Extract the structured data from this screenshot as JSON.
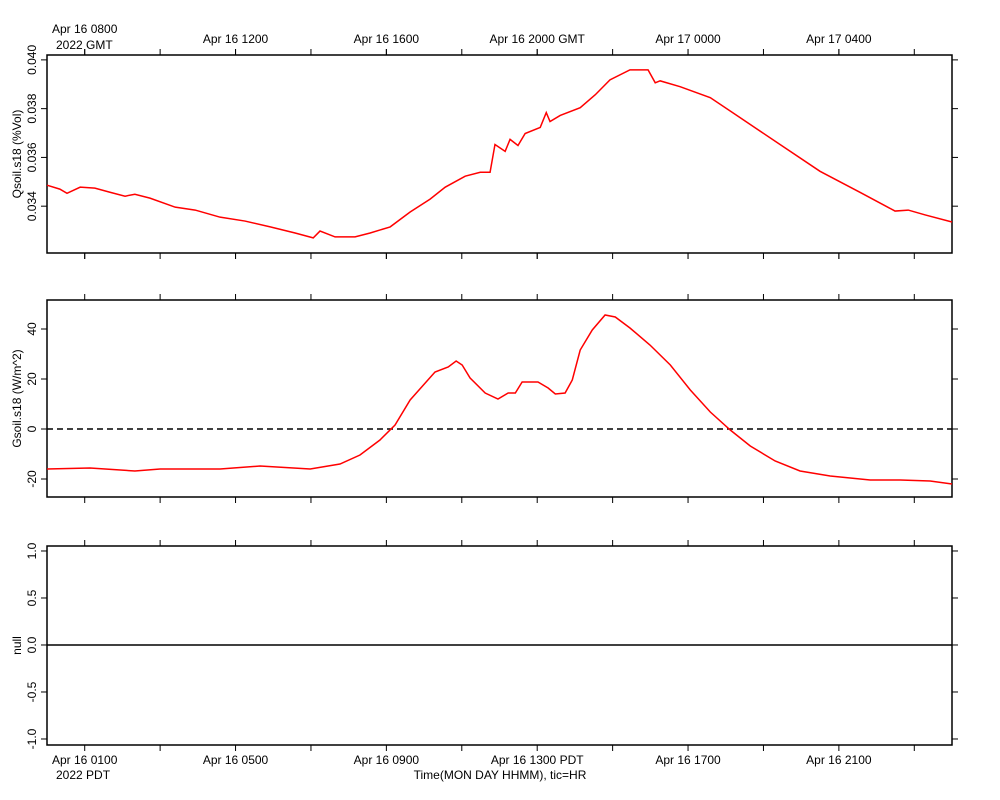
{
  "chart_data": [
    {
      "type": "line",
      "ylabel": "Qsoil.s18 (%Vol)",
      "xlim": [
        0,
        24
      ],
      "ylim": [
        0.03208,
        0.0402
      ],
      "yticks": [
        {
          "value": 0.04,
          "label": "0.040"
        },
        0.038,
        0.036,
        0.034
      ],
      "xminor": [
        1,
        3,
        5,
        7,
        9,
        11,
        13,
        15,
        17,
        19,
        21,
        23
      ],
      "x2ticks": [
        {
          "value": 1,
          "label": "Apr 16 0800"
        },
        {
          "value": 5,
          "label": "Apr 16 1200"
        },
        {
          "value": 9,
          "label": "Apr 16 1600"
        },
        {
          "value": 13,
          "label": "Apr 16 2000 GMT"
        },
        {
          "value": 17,
          "label": "Apr 17 0000"
        },
        {
          "value": 21,
          "label": "Apr 17 0400"
        }
      ],
      "x2ticks_sub": "2022 GMT",
      "x": [
        0,
        0.34,
        0.53,
        0.88,
        1.27,
        1.67,
        2.07,
        2.33,
        2.73,
        3.4,
        3.93,
        4.59,
        5.25,
        5.92,
        6.58,
        7.06,
        7.24,
        7.64,
        8.17,
        8.57,
        9.1,
        9.63,
        10.16,
        10.56,
        11.09,
        11.49,
        11.75,
        11.88,
        12.15,
        12.28,
        12.49,
        12.68,
        13.08,
        13.24,
        13.34,
        13.61,
        14.14,
        14.54,
        14.93,
        15.46,
        15.94,
        16.13,
        16.26,
        16.79,
        17.59,
        18.38,
        19.44,
        20.5,
        21.56,
        22.49,
        22.84,
        23.29,
        24
      ],
      "series": [
        {
          "color": "#ff0000",
          "values": [
            0.03486,
            0.0347,
            0.03453,
            0.03478,
            0.03474,
            0.03457,
            0.03441,
            0.03449,
            0.03433,
            0.03396,
            0.03384,
            0.03355,
            0.03339,
            0.03315,
            0.0329,
            0.0327,
            0.03298,
            0.03274,
            0.03274,
            0.0329,
            0.03315,
            0.03376,
            0.03429,
            0.03478,
            0.03523,
            0.03539,
            0.03539,
            0.03653,
            0.03625,
            0.03674,
            0.03649,
            0.03698,
            0.03723,
            0.03784,
            0.03747,
            0.03772,
            0.03804,
            0.03857,
            0.03918,
            0.03959,
            0.03959,
            0.03906,
            0.03914,
            0.0389,
            0.03845,
            0.03763,
            0.03653,
            0.03543,
            0.03457,
            0.0338,
            0.03384,
            0.03364,
            0.03335
          ]
        }
      ]
    },
    {
      "type": "line",
      "ylabel": "Gsoil.s18 (W/m^2)",
      "xlim": [
        0,
        24
      ],
      "ylim": [
        -27.2,
        51.6
      ],
      "yticks": [
        40,
        20,
        0,
        -20
      ],
      "xminor": [
        1,
        3,
        5,
        7,
        9,
        11,
        13,
        15,
        17,
        19,
        21,
        23
      ],
      "hline": 0,
      "hline_style": "dashed",
      "x": [
        0,
        1.14,
        2.33,
        3,
        4.59,
        5.65,
        6.98,
        7.77,
        8.3,
        8.83,
        9.23,
        9.63,
        10.03,
        10.29,
        10.64,
        10.85,
        11.01,
        11.22,
        11.62,
        11.96,
        12.23,
        12.42,
        12.6,
        12.81,
        13.02,
        13.29,
        13.48,
        13.74,
        13.93,
        14.14,
        14.46,
        14.8,
        15.07,
        15.46,
        15.99,
        16.53,
        17.06,
        17.59,
        18.12,
        18.65,
        19.31,
        19.97,
        20.77,
        21.83,
        22.63,
        23.42,
        24
      ],
      "series": [
        {
          "color": "#ff0000",
          "values": [
            -16,
            -15.6,
            -16.8,
            -16,
            -16,
            -14.8,
            -16,
            -14,
            -10.4,
            -4.4,
            1.6,
            11.6,
            18.4,
            22.8,
            24.8,
            27.2,
            25.6,
            20.4,
            14.4,
            12,
            14.4,
            14.4,
            18.8,
            18.8,
            18.8,
            16.4,
            14,
            14.4,
            19.6,
            31.6,
            39.6,
            45.6,
            44.8,
            40.4,
            33.6,
            25.6,
            15.6,
            6.8,
            -0.4,
            -6.8,
            -12.8,
            -16.8,
            -18.8,
            -20.4,
            -20.4,
            -20.8,
            -22
          ]
        }
      ]
    },
    {
      "type": "line",
      "ylabel": "null",
      "xlim": [
        0,
        24
      ],
      "ylim": [
        -1.064,
        1.053
      ],
      "yticks": [
        {
          "value": 1,
          "label": "1.0"
        },
        {
          "value": 0.5,
          "label": "0.5"
        },
        {
          "value": 0,
          "label": "0.0"
        },
        {
          "value": -0.5,
          "label": "-0.5"
        },
        {
          "value": -1,
          "label": "-1.0"
        }
      ],
      "hline": 0,
      "hline_style": "solid",
      "xticks": [
        {
          "value": 1,
          "label": "Apr 16 0100"
        },
        {
          "value": 5,
          "label": "Apr 16 0500"
        },
        {
          "value": 9,
          "label": "Apr 16 0900"
        },
        {
          "value": 13,
          "label": "Apr 16 1300 PDT"
        },
        {
          "value": 17,
          "label": "Apr 16 1700"
        },
        {
          "value": 21,
          "label": "Apr 16 2100"
        }
      ],
      "xminor": [
        3,
        7,
        11,
        15,
        19,
        23
      ],
      "xticks_sub": "2022 PDT",
      "xlabel": "Time(MON DAY HHMM), tic=HR",
      "series": []
    }
  ]
}
